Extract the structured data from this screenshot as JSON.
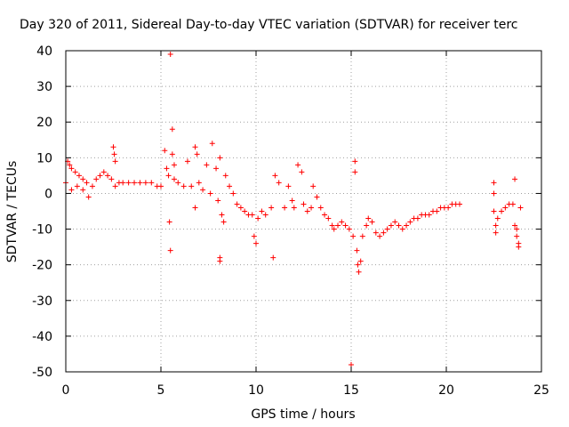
{
  "chart_data": {
    "type": "scatter",
    "title": "Day 320 of 2011, Sidereal Day-to-day VTEC variation (SDTVAR) for receiver terc",
    "xlabel": "GPS time / hours",
    "ylabel": "SDTVAR / TECUs",
    "xlim": [
      0,
      25
    ],
    "ylim": [
      -50,
      40
    ],
    "xticks": [
      0,
      5,
      10,
      15,
      20,
      25
    ],
    "yticks": [
      40,
      30,
      20,
      10,
      0,
      -10,
      -20,
      -30,
      -40,
      -50
    ],
    "xtick_labels": [
      "0",
      "5",
      "10",
      "15",
      "20",
      "25"
    ],
    "ytick_labels": [
      "40",
      "30",
      "20",
      "10",
      "0",
      "-10",
      "-20",
      "-30",
      "-40",
      "-50"
    ],
    "grid": true,
    "marker": "+",
    "color": "#ff0000",
    "series": [
      {
        "name": "SDTVAR",
        "points": [
          [
            0.0,
            3
          ],
          [
            0.1,
            9
          ],
          [
            0.2,
            8
          ],
          [
            0.3,
            7
          ],
          [
            0.5,
            6
          ],
          [
            0.7,
            5
          ],
          [
            0.9,
            4
          ],
          [
            1.1,
            3
          ],
          [
            0.3,
            1
          ],
          [
            0.6,
            2
          ],
          [
            0.9,
            1
          ],
          [
            1.2,
            -1
          ],
          [
            1.4,
            2
          ],
          [
            1.6,
            4
          ],
          [
            1.8,
            5
          ],
          [
            2.0,
            6
          ],
          [
            2.2,
            5
          ],
          [
            2.4,
            4
          ],
          [
            2.5,
            13
          ],
          [
            2.55,
            11
          ],
          [
            2.6,
            9
          ],
          [
            2.6,
            2
          ],
          [
            2.8,
            3
          ],
          [
            3.0,
            3
          ],
          [
            3.3,
            3
          ],
          [
            3.6,
            3
          ],
          [
            3.9,
            3
          ],
          [
            4.2,
            3
          ],
          [
            4.5,
            3
          ],
          [
            4.8,
            2
          ],
          [
            5.0,
            2
          ],
          [
            5.2,
            12
          ],
          [
            5.3,
            7
          ],
          [
            5.4,
            5
          ],
          [
            5.45,
            -8
          ],
          [
            5.5,
            -16
          ],
          [
            5.5,
            39
          ],
          [
            5.6,
            18
          ],
          [
            5.6,
            11
          ],
          [
            5.7,
            8
          ],
          [
            5.7,
            4
          ],
          [
            5.9,
            3
          ],
          [
            6.2,
            2
          ],
          [
            6.4,
            9
          ],
          [
            6.6,
            2
          ],
          [
            6.8,
            13
          ],
          [
            6.9,
            11
          ],
          [
            6.8,
            -4
          ],
          [
            7.0,
            3
          ],
          [
            7.2,
            1
          ],
          [
            7.4,
            8
          ],
          [
            7.6,
            0
          ],
          [
            7.7,
            14
          ],
          [
            7.9,
            7
          ],
          [
            8.0,
            -2
          ],
          [
            8.1,
            10
          ],
          [
            8.1,
            -18
          ],
          [
            8.1,
            -19
          ],
          [
            8.2,
            -6
          ],
          [
            8.3,
            -8
          ],
          [
            8.4,
            5
          ],
          [
            8.6,
            2
          ],
          [
            8.8,
            0
          ],
          [
            9.0,
            -3
          ],
          [
            9.2,
            -4
          ],
          [
            9.4,
            -5
          ],
          [
            9.6,
            -6
          ],
          [
            9.8,
            -6
          ],
          [
            9.9,
            -12
          ],
          [
            10.0,
            -14
          ],
          [
            10.1,
            -7
          ],
          [
            10.3,
            -5
          ],
          [
            10.5,
            -6
          ],
          [
            10.8,
            -4
          ],
          [
            10.9,
            -18
          ],
          [
            11.0,
            5
          ],
          [
            11.2,
            3
          ],
          [
            11.5,
            -4
          ],
          [
            11.7,
            2
          ],
          [
            11.9,
            -2
          ],
          [
            12.0,
            -4
          ],
          [
            12.2,
            8
          ],
          [
            12.4,
            6
          ],
          [
            12.5,
            -3
          ],
          [
            12.7,
            -5
          ],
          [
            12.9,
            -4
          ],
          [
            13.0,
            2
          ],
          [
            13.2,
            -1
          ],
          [
            13.4,
            -4
          ],
          [
            13.6,
            -6
          ],
          [
            13.8,
            -7
          ],
          [
            14.0,
            -9
          ],
          [
            14.1,
            -10
          ],
          [
            14.3,
            -9
          ],
          [
            14.5,
            -8
          ],
          [
            14.7,
            -9
          ],
          [
            14.9,
            -10
          ],
          [
            15.0,
            -48
          ],
          [
            15.1,
            -12
          ],
          [
            15.2,
            9
          ],
          [
            15.2,
            6
          ],
          [
            15.3,
            -16
          ],
          [
            15.35,
            -20
          ],
          [
            15.4,
            -22
          ],
          [
            15.5,
            -19
          ],
          [
            15.6,
            -12
          ],
          [
            15.8,
            -9
          ],
          [
            15.9,
            -7
          ],
          [
            16.1,
            -8
          ],
          [
            16.3,
            -11
          ],
          [
            16.5,
            -12
          ],
          [
            16.7,
            -11
          ],
          [
            16.9,
            -10
          ],
          [
            17.1,
            -9
          ],
          [
            17.3,
            -8
          ],
          [
            17.5,
            -9
          ],
          [
            17.7,
            -10
          ],
          [
            17.9,
            -9
          ],
          [
            18.1,
            -8
          ],
          [
            18.3,
            -7
          ],
          [
            18.5,
            -7
          ],
          [
            18.7,
            -6
          ],
          [
            18.9,
            -6
          ],
          [
            19.1,
            -6
          ],
          [
            19.3,
            -5
          ],
          [
            19.5,
            -5
          ],
          [
            19.7,
            -4
          ],
          [
            19.9,
            -4
          ],
          [
            20.1,
            -4
          ],
          [
            20.3,
            -3
          ],
          [
            20.5,
            -3
          ],
          [
            20.7,
            -3
          ],
          [
            22.5,
            3
          ],
          [
            22.5,
            0
          ],
          [
            22.5,
            -5
          ],
          [
            22.6,
            -9
          ],
          [
            22.6,
            -11
          ],
          [
            22.7,
            -7
          ],
          [
            22.9,
            -5
          ],
          [
            23.1,
            -4
          ],
          [
            23.3,
            -3
          ],
          [
            23.5,
            -3
          ],
          [
            23.6,
            4
          ],
          [
            23.6,
            -9
          ],
          [
            23.7,
            -10
          ],
          [
            23.7,
            -12
          ],
          [
            23.8,
            -14
          ],
          [
            23.8,
            -15
          ],
          [
            23.9,
            -4
          ]
        ]
      }
    ]
  }
}
